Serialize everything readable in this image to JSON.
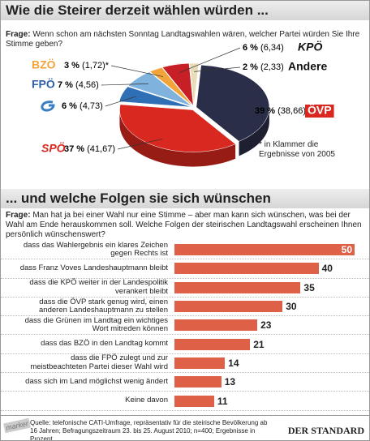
{
  "chart_data": [
    {
      "type": "pie",
      "title": "Wie die Steirer derzeit wählen würden ...",
      "question_label": "Frage:",
      "question": "Wenn schon am nächsten Sonntag Landtagswahlen wären, welcher Partei würden Sie Ihre Stimme geben?",
      "categories": [
        "KPÖ",
        "Andere",
        "ÖVP",
        "SPÖ",
        null,
        "FPÖ",
        "BZÖ"
      ],
      "values": [
        6,
        2,
        39,
        37,
        6,
        7,
        3
      ],
      "value_labels": [
        "6 %",
        "2 %",
        "39 %",
        "37 %",
        "6 %",
        "7 %",
        "3 %"
      ],
      "previous_labels": [
        "(6,34)",
        "(2,33)",
        "(38,66)",
        "(41,67)",
        "(4,73)",
        "(4,56)",
        "(1,72)*"
      ],
      "colors": [
        "#c61f26",
        "#e9dcb8",
        "#2b2e48",
        "#d8281f",
        "#2f6fb5",
        "#7fb2dd",
        "#f1a43a"
      ],
      "annotation": "* in Klammer die Ergebnisse von 2005"
    },
    {
      "type": "bar",
      "orientation": "horizontal",
      "title": "... und welche Folgen sie sich wünschen",
      "question_label": "Frage:",
      "question": "Man hat ja bei einer Wahl nur eine Stimme – aber man kann sich wünschen, was bei der Wahl am Ende herauskommen soll. Welche Folgen der steirischen Landtagswahl erscheinen Ihnen persönlich wünschenswert?",
      "categories": [
        "dass das Wahlergebnis ein klares Zeichen\ngegen Rechts ist",
        "dass Franz Voves Landeshauptmann bleibt",
        "dass die KPÖ weiter in der Landespolitik\nverankert bleibt",
        "dass die ÖVP stark genug wird, einen\nanderen Landeshauptmann zu stellen",
        "dass die Grünen im Landtag ein wichtiges\nWort mitreden können",
        "dass das BZÖ in den Landtag kommt",
        "dass die FPÖ zulegt und zur\nmeistbeachteten Partei dieser Wahl wird",
        "dass sich im Land möglichst wenig ändert",
        "Keine davon"
      ],
      "values": [
        50,
        40,
        35,
        30,
        23,
        21,
        14,
        13,
        11
      ],
      "color": "#de6046"
    }
  ],
  "footer": {
    "marker": "marker",
    "source": "Quelle: telefonische CATI-Umfrage, repräsentativ für die steirische Bevölkerung ab 16 Jahren; Befragungszeitraum 23. bis 25. August 2010; n=400; Ergebnisse in Prozent",
    "brand": "DER STANDARD"
  }
}
